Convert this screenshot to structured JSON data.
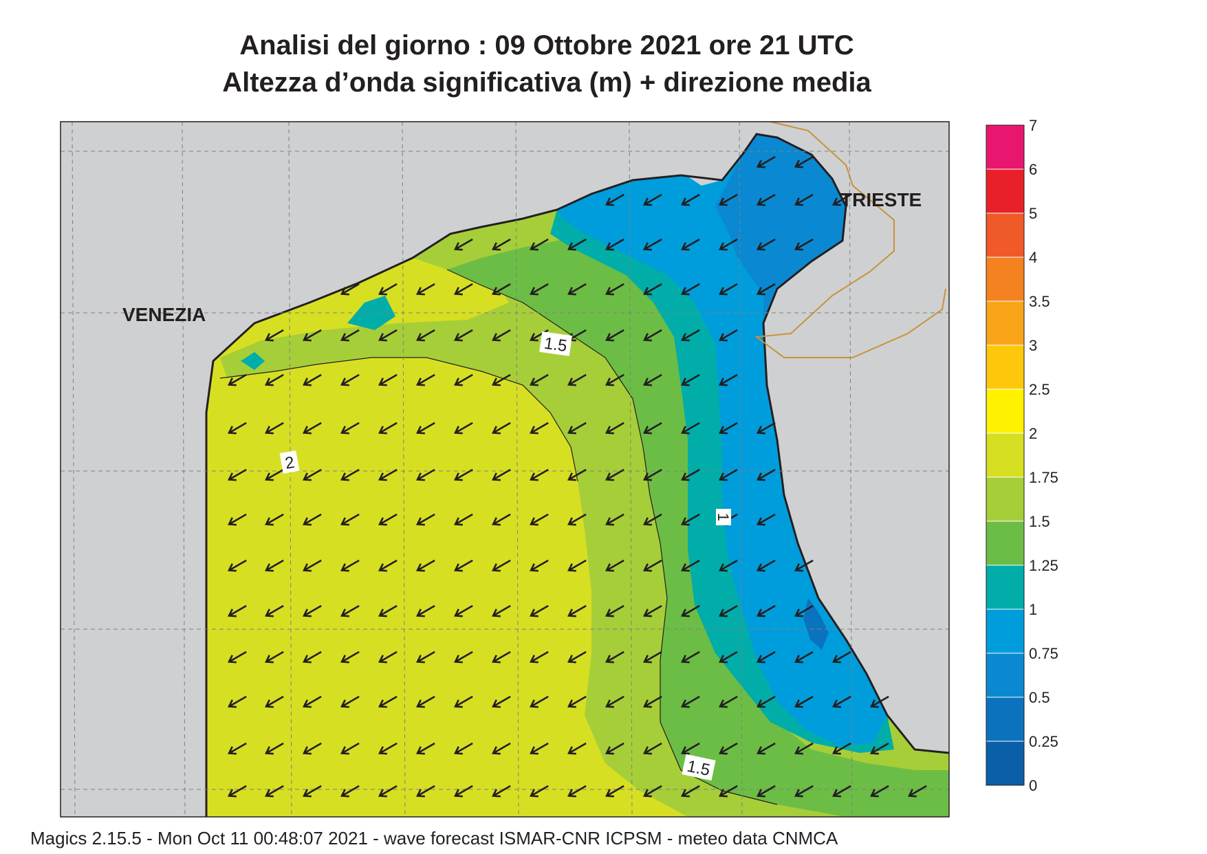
{
  "title": {
    "line1": "Analisi del giorno :  09  Ottobre  2021    ore 21 UTC",
    "line2": "Altezza d’onda significativa (m) + direzione media"
  },
  "places": {
    "venezia": "VENEZIA",
    "trieste": "TRIESTE"
  },
  "contour_labels": [
    "1.5",
    "2",
    "1",
    "1.5"
  ],
  "legend": {
    "ticks": [
      "7",
      "6",
      "5",
      "4",
      "3.5",
      "3",
      "2.5",
      "2",
      "1.75",
      "1.5",
      "1.25",
      "1",
      "0.75",
      "0.5",
      "0.25",
      "0"
    ],
    "colors": [
      "#e8166e",
      "#e8202a",
      "#f05a28",
      "#f58220",
      "#f9a51a",
      "#fdc80c",
      "#fff200",
      "#d7df23",
      "#a6ce39",
      "#6cbd45",
      "#00ada9",
      "#009ddc",
      "#0a89d2",
      "#0b73be",
      "#0a5fa8"
    ]
  },
  "colors": {
    "land": "#cfd0d2",
    "coast": "#231f20",
    "border": "#c8933a",
    "grid": "#7f7f7f",
    "arrow": "#231f20"
  },
  "wave_direction": "toward south-west",
  "footer": "Magics 2.15.5 - Mon Oct 11 00:48:07 2021 - wave forecast  ISMAR-CNR  ICPSM - meteo data   CNMCA"
}
